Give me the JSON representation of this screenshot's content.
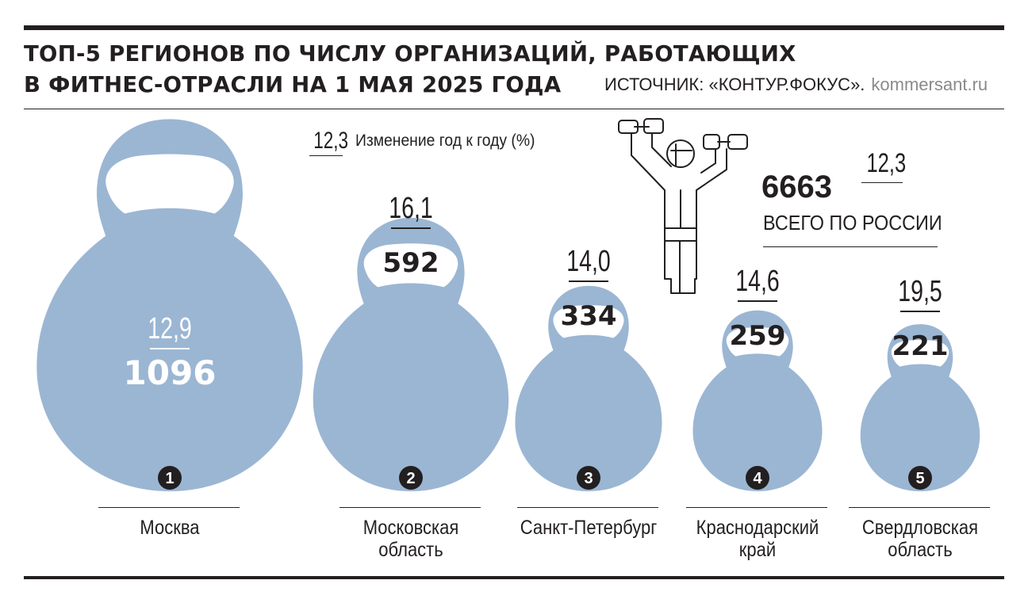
{
  "header": {
    "title_line1": "ТОП-5 РЕГИОНОВ ПО ЧИСЛУ ОРГАНИЗАЦИЙ, РАБОТАЮЩИХ",
    "title_line2": "В ФИТНЕС-ОТРАСЛИ НА 1 МАЯ 2025 ГОДА",
    "source": "ИСТОЧНИК: «КОНТУР.ФОКУС».",
    "brand": "kommersant.ru"
  },
  "legend": {
    "sample_value": "12,3",
    "label": "Изменение год к году (%)"
  },
  "total": {
    "value": "6663",
    "change": "12,3",
    "label": "ВСЕГО ПО РОССИИ"
  },
  "colors": {
    "kettlebell": "#9bb6d3",
    "text": "#231f20",
    "inner_text": "#ffffff"
  },
  "chart_data": {
    "type": "bar",
    "categories": [
      "Москва",
      "Московская область",
      "Санкт-Петербург",
      "Краснодарский край",
      "Свердловская область"
    ],
    "values": [
      1096,
      592,
      334,
      259,
      221
    ],
    "change_yoy_pct": [
      12.9,
      16.1,
      14.0,
      14.6,
      19.5
    ],
    "ranks": [
      "1",
      "2",
      "3",
      "4",
      "5"
    ],
    "value_labels": [
      "1096",
      "592",
      "334",
      "259",
      "221"
    ],
    "change_labels": [
      "12,9",
      "16,1",
      "14,0",
      "14,6",
      "19,5"
    ],
    "category_lines": [
      [
        "Москва"
      ],
      [
        "Московская",
        "область"
      ],
      [
        "Санкт-Петербург"
      ],
      [
        "Краснодарский",
        "край"
      ],
      [
        "Свердловская",
        "область"
      ]
    ]
  }
}
